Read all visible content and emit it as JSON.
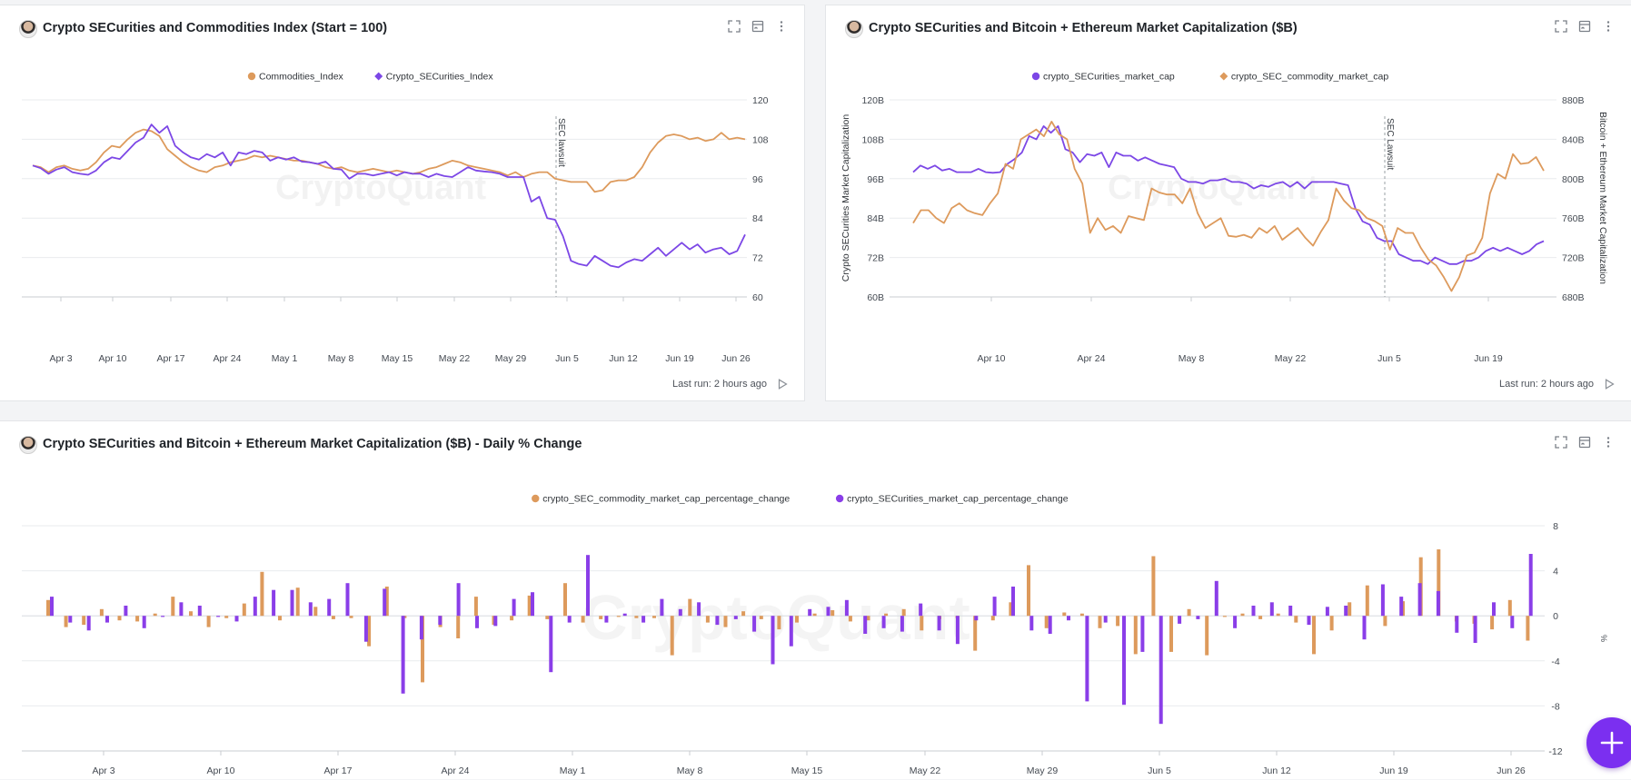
{
  "watermark": "CryptoQuant",
  "panels": [
    {
      "title": "Crypto SECurities and Commodities Index (Start = 100)",
      "last_run": "Last run: 2 hours ago",
      "chart_data": {
        "type": "line",
        "legend": [
          "Commodities_Index",
          "Crypto_SECurities_Index"
        ],
        "x_ticks": [
          "Apr 3",
          "Apr 10",
          "Apr 17",
          "Apr 24",
          "May 1",
          "May 8",
          "May 15",
          "May 22",
          "May 29",
          "Jun 5",
          "Jun 12",
          "Jun 19",
          "Jun 26"
        ],
        "y_ticks": [
          "120",
          "108",
          "96",
          "84",
          "72",
          "60"
        ],
        "ylim": [
          60,
          120
        ],
        "annotation": "SEC lawsuit",
        "series": [
          {
            "name": "Commodities_Index",
            "color": "#dd9a5c",
            "values": [
              100,
              99.5,
              98,
              99.5,
              100,
              99,
              98.5,
              99,
              101,
              104,
              106,
              105.5,
              108,
              110,
              111,
              110.5,
              109,
              105,
              103,
              101,
              99.5,
              98.5,
              98,
              99.5,
              100,
              101,
              101.5,
              102,
              103,
              102.5,
              103,
              102.5,
              102,
              101.5,
              101.5,
              101,
              100.5,
              99.5,
              99,
              99.5,
              98.5,
              98,
              98.5,
              99,
              98.5,
              98,
              98.5,
              98,
              97.5,
              98,
              99,
              99.5,
              100.5,
              101.5,
              101,
              100,
              99.5,
              99,
              98.5,
              98,
              97,
              98,
              96.5,
              97.5,
              98,
              98,
              96,
              95.5,
              95,
              95,
              95,
              92,
              92.5,
              95,
              95.5,
              95.5,
              96.5,
              99.5,
              104,
              107,
              109,
              109.5,
              109,
              108,
              108.5,
              107.5,
              108,
              110,
              108,
              108.5,
              108
            ]
          },
          {
            "name": "Crypto_SECurities_Index",
            "color": "#7c47e6",
            "values": [
              100,
              99.2,
              97.5,
              98.8,
              99.5,
              98,
              97.5,
              97.2,
              98.5,
              101,
              102.5,
              102,
              104.5,
              107,
              108.5,
              112.5,
              110,
              112,
              106,
              104,
              102.5,
              101.8,
              103.5,
              102.5,
              104,
              100,
              104,
              103.5,
              104.5,
              104,
              101.5,
              102.5,
              101.8,
              102.5,
              101.2,
              101,
              100.5,
              101.2,
              99,
              98.8,
              96,
              97.5,
              97.5,
              97,
              97.5,
              98,
              97,
              98,
              97.5,
              97.5,
              96.5,
              97.5,
              96.8,
              96.5,
              98,
              99.5,
              98.5,
              98.2,
              98,
              97.5,
              96.5,
              96.5,
              96.5,
              89,
              90.5,
              84,
              83.5,
              78.5,
              71,
              70,
              69.5,
              72.5,
              71,
              69.5,
              69,
              70.5,
              71.5,
              71,
              73,
              75,
              72.5,
              74.5,
              76.5,
              74.5,
              76,
              73.5,
              74.5,
              75,
              73,
              74,
              79
            ]
          }
        ]
      }
    },
    {
      "title": "Crypto SECurities and Bitcoin + Ethereum Market Capitalization ($B)",
      "last_run": "Last run: 2 hours ago",
      "chart_data": {
        "type": "line",
        "legend": [
          "crypto_SECurities_market_cap",
          "crypto_SEC_commodity_market_cap"
        ],
        "x_ticks": [
          "Apr 10",
          "Apr 24",
          "May 8",
          "May 22",
          "Jun 5",
          "Jun 19"
        ],
        "y_left_ticks": [
          "120B",
          "108B",
          "96B",
          "84B",
          "72B",
          "60B"
        ],
        "y_right_ticks": [
          "880B",
          "840B",
          "800B",
          "760B",
          "720B",
          "680B"
        ],
        "ylabel": "Crypto SECurities Market Capitalization",
        "y2label": "Bitcoin + Ethereum Market Capitalization",
        "ylim": [
          60,
          120
        ],
        "y2lim": [
          680,
          880
        ],
        "annotation": "SEC Lawsuit",
        "series": [
          {
            "name": "crypto_SECurities_market_cap",
            "color": "#7c47e6",
            "axis": "left",
            "values": [
              98,
              100,
              99,
              100,
              98.5,
              99,
              98,
              98,
              98,
              99,
              98,
              97.8,
              98,
              100.5,
              102,
              104,
              109,
              108,
              112,
              110,
              112,
              105,
              104,
              101,
              103.5,
              103,
              104,
              99.5,
              104,
              103,
              103,
              101.5,
              102.5,
              101.5,
              100.5,
              100,
              99.5,
              96,
              95,
              95,
              94.5,
              95.5,
              95.5,
              96,
              95,
              95,
              94.5,
              93,
              94,
              93.5,
              94.5,
              95,
              93.5,
              95,
              93,
              95,
              95,
              95,
              95,
              94.5,
              94,
              87,
              83,
              82,
              78,
              77,
              77,
              73,
              72,
              71,
              71,
              70,
              72,
              71,
              70,
              70,
              71,
              71,
              72,
              74,
              75,
              74,
              75,
              74,
              73,
              74,
              76,
              77
            ]
          },
          {
            "name": "crypto_SEC_commodity_market_cap",
            "color": "#dd9a5c",
            "axis": "right",
            "values": [
              755,
              768,
              768,
              760,
              755,
              770,
              775,
              768,
              765,
              763,
              775,
              785,
              815,
              810,
              840,
              845,
              850,
              843,
              858,
              845,
              840,
              810,
              795,
              745,
              760,
              748,
              752,
              745,
              762,
              760,
              758,
              790,
              786,
              784,
              784,
              775,
              790,
              765,
              750,
              755,
              760,
              742,
              741,
              743,
              740,
              750,
              745,
              752,
              738,
              744,
              750,
              740,
              732,
              746,
              758,
              790,
              778,
              770,
              768,
              760,
              757,
              752,
              728,
              750,
              745,
              745,
              730,
              718,
              712,
              700,
              686,
              700,
              722,
              725,
              740,
              785,
              805,
              800,
              825,
              815,
              816,
              822,
              808
            ]
          }
        ]
      }
    },
    {
      "title": "Crypto SECurities and Bitcoin + Ethereum Market Capitalization ($B) - Daily % Change",
      "chart_data": {
        "type": "bar",
        "legend": [
          "crypto_SEC_commodity_market_cap_percentage_change",
          "crypto_SECurities_market_cap_percentage_change"
        ],
        "x_ticks": [
          "Apr 3",
          "Apr 10",
          "Apr 17",
          "Apr 24",
          "May 1",
          "May 8",
          "May 15",
          "May 22",
          "May 29",
          "Jun 5",
          "Jun 12",
          "Jun 19",
          "Jun 26"
        ],
        "y_ticks": [
          "8",
          "4",
          "0",
          "-4",
          "-8",
          "-12"
        ],
        "ylim": [
          -12,
          8
        ],
        "unit": "%",
        "series": [
          {
            "name": "crypto_SEC_commodity_market_cap_percentage_change",
            "color": "#dd9a5c",
            "values": [
              1.4,
              -1,
              -0.8,
              0.6,
              -0.4,
              -0.5,
              0.2,
              1.7,
              0.4,
              -1,
              -0.2,
              1.1,
              3.9,
              -0.4,
              2.5,
              0.8,
              -0.3,
              -0.2,
              -2.7,
              2.6,
              -0.2,
              -5.9,
              -1,
              -2,
              1.7,
              -0.8,
              -0.4,
              1.8,
              -0.3,
              2.9,
              -0.6,
              -0.3,
              -0.1,
              -0.2,
              -0.2,
              -3.5,
              1.5,
              -0.6,
              -1,
              0.4,
              -0.3,
              -1.2,
              -0.6,
              0.2,
              0.5,
              -0.5,
              -0.4,
              0.2,
              0.6,
              -1.3,
              -0.3,
              -0.2,
              -3.1,
              -0.4,
              1.2,
              4.5,
              -1.1,
              0.3,
              0.2,
              -1.1,
              -0.9,
              -3.4,
              5.3,
              -3.2,
              0.6,
              -3.5,
              -0.1,
              0.2,
              -0.3,
              0.2,
              -0.6,
              -3.4,
              -1.3,
              1.2,
              2.7,
              -0.9,
              1.3,
              5.2,
              5.9,
              -0.5,
              -0.7,
              -1.2,
              1.4,
              -2.2
            ]
          },
          {
            "name": "crypto_SECurities_market_cap_percentage_change",
            "color": "#8a3ee8",
            "values": [
              1.7,
              -0.6,
              -1.3,
              -0.6,
              0.9,
              -1.1,
              -0.1,
              1.2,
              0.9,
              -0.1,
              -0.5,
              1.7,
              2.3,
              2.3,
              1.2,
              1.5,
              2.9,
              -2.3,
              2.4,
              -6.9,
              -2.1,
              -0.8,
              2.9,
              -1.1,
              -0.9,
              1.5,
              2.1,
              -5,
              -0.6,
              5.4,
              -0.6,
              0.2,
              -0.6,
              1.5,
              0.6,
              1.2,
              -0.8,
              -0.3,
              -1.4,
              -4.3,
              -2.7,
              0.6,
              0.8,
              1.4,
              -1.6,
              -1.1,
              -1.4,
              1.1,
              -1.3,
              -2.5,
              -0.4,
              1.7,
              2.6,
              -1.3,
              -1.6,
              -0.4,
              -7.6,
              -0.6,
              -7.9,
              -3.2,
              -9.6,
              -0.7,
              -0.3,
              3.1,
              -1.1,
              0.9,
              1.2,
              0.9,
              -0.8,
              0.8,
              0.9,
              -2.1,
              2.8,
              1.7,
              2.9,
              2.2,
              -1.5,
              -2.4,
              1.2,
              -1.1,
              5.5
            ]
          }
        ]
      }
    }
  ]
}
